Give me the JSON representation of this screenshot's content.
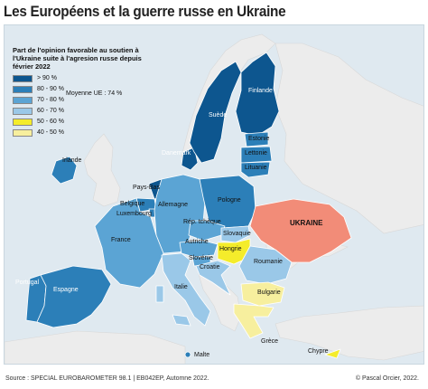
{
  "title": "Les Européens et la guerre russe en Ukraine",
  "legend": {
    "title": "Part de l'opinion favorable au soutien à l'Ukraine suite à l'agresion russe depuis février 2022",
    "classes": [
      {
        "label": "> 90 %",
        "color": "#0d568f"
      },
      {
        "label": "80 - 90 %",
        "color": "#2c7fb8"
      },
      {
        "label": "70 - 80 %",
        "color": "#5ba4d4"
      },
      {
        "label": "60 - 70 %",
        "color": "#9ac8e8"
      },
      {
        "label": "50 - 60 %",
        "color": "#f4ec2b"
      },
      {
        "label": "40 - 50 %",
        "color": "#f7ef9e"
      }
    ],
    "average": "Moyenne UE : 74 %"
  },
  "countries": {
    "irlande": "Irlande",
    "danemark": "Danemark",
    "suede": "Suède",
    "finlande": "Finlande",
    "estonie": "Estonie",
    "lettonie": "Lettonie",
    "lituanie": "Lituanie",
    "paysbas": "Pays-Bas",
    "belgique": "Belgique",
    "luxembourg": "Luxembourg",
    "allemagne": "Allemagne",
    "pologne": "Pologne",
    "ukraine": "UKRAINE",
    "reptcheque": "Rép. tchèque",
    "slovaquie": "Slovaquie",
    "france": "France",
    "autriche": "Autriche",
    "hongrie": "Hongrie",
    "slovenie": "Slovénie",
    "croatie": "Croatie",
    "roumanie": "Roumanie",
    "portugal": "Portugal",
    "espagne": "Espagne",
    "italie": "Italie",
    "bulgarie": "Bulgarie",
    "grece": "Grèce",
    "malte": "Malte",
    "chypre": "Chypre"
  },
  "colors": {
    "sea": "#dfe9f0",
    "non_eu": "#ececec",
    "ukraine": "#f28c78",
    "border": "#ffffff"
  },
  "footer": {
    "source": "Source : SPECIAL EUROBAROMETER 98.1 | EB042EP, Automne 2022.",
    "copyright": "© Pascal Orcier, 2022."
  }
}
